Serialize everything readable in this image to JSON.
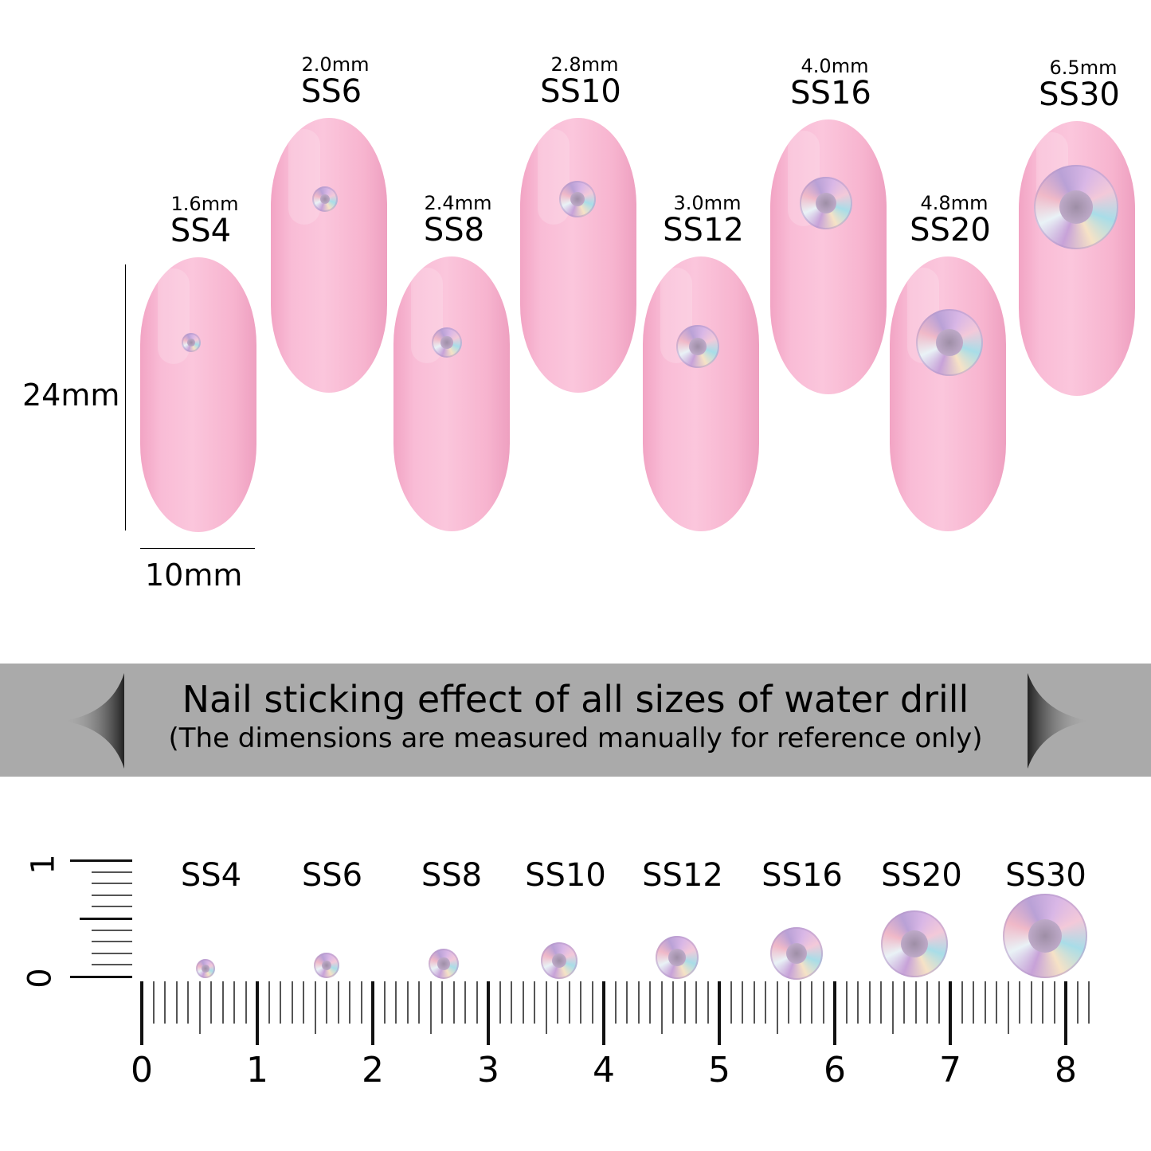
{
  "nails": [
    {
      "size": "SS4",
      "mm": "1.6mm"
    },
    {
      "size": "SS6",
      "mm": "2.0mm"
    },
    {
      "size": "SS8",
      "mm": "2.4mm"
    },
    {
      "size": "SS10",
      "mm": "2.8mm"
    },
    {
      "size": "SS12",
      "mm": "3.0mm"
    },
    {
      "size": "SS16",
      "mm": "4.0mm"
    },
    {
      "size": "SS20",
      "mm": "4.8mm"
    },
    {
      "size": "SS30",
      "mm": "6.5mm"
    }
  ],
  "nail_dimensions": {
    "height": "24mm",
    "width": "10mm"
  },
  "nail_color": "#f9bcd6",
  "banner": {
    "title": "Nail sticking effect of all sizes of water drill",
    "subtitle": "(The dimensions are measured manually for reference only)",
    "color": "#aaaaaa"
  },
  "ruler": {
    "labels": [
      "0",
      "1",
      "2",
      "3",
      "4",
      "5",
      "6",
      "7",
      "8"
    ],
    "vertical_labels": [
      "0",
      "1"
    ],
    "gem_labels": [
      "SS4",
      "SS6",
      "SS8",
      "SS10",
      "SS12",
      "SS16",
      "SS20",
      "SS30"
    ]
  }
}
